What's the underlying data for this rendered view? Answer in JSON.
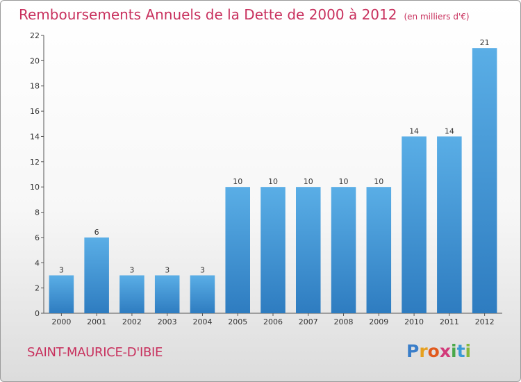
{
  "header": {
    "title": "Remboursements Annuels de la Dette de 2000 à 2012",
    "subtitle": "(en milliers d'€)"
  },
  "footer": {
    "town": "SAINT-MAURICE-D'IBIE",
    "logo_letters": [
      "P",
      "r",
      "o",
      "x",
      "i",
      "t",
      "i"
    ],
    "logo_colors": [
      "#3a7ec9",
      "#e6a020",
      "#e15a1e",
      "#d23a7a",
      "#4aa84a",
      "#3a9ad6",
      "#86b83a"
    ]
  },
  "colors": {
    "bar_top": "#5aaee6",
    "bar_bottom": "#2e7cc0",
    "title": "#c8305d",
    "axis": "#555555"
  },
  "chart_data": {
    "type": "bar",
    "title": "Remboursements Annuels de la Dette de 2000 à 2012",
    "xlabel": "",
    "ylabel": "",
    "categories": [
      "2000",
      "2001",
      "2002",
      "2003",
      "2004",
      "2005",
      "2006",
      "2007",
      "2008",
      "2009",
      "2010",
      "2011",
      "2012"
    ],
    "values": [
      3,
      6,
      3,
      3,
      3,
      10,
      10,
      10,
      10,
      10,
      14,
      14,
      21
    ],
    "ylim": [
      0,
      22
    ],
    "yticks": [
      0,
      2,
      4,
      6,
      8,
      10,
      12,
      14,
      16,
      18,
      20,
      22
    ],
    "grid": false
  }
}
